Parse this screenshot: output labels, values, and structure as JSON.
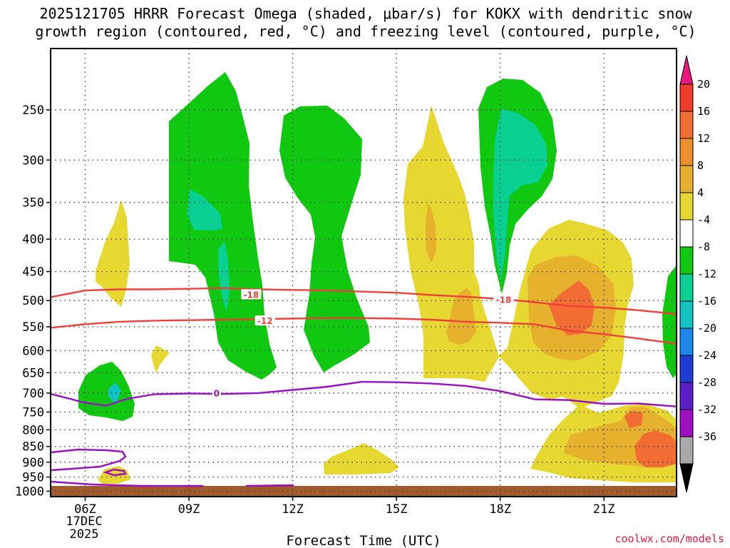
{
  "chart_data": {
    "type": "time-height cross section",
    "title_line1": "2025121705 HRRR Forecast Omega (shaded, μbar/s) for KOKX with dendritic snow",
    "title_line2": "growth region (contoured, red, °C) and freezing level (contoured, purple, °C)",
    "xlabel": "Forecast Time (UTC)",
    "x_ticks": [
      "06Z",
      "09Z",
      "12Z",
      "15Z",
      "18Z",
      "21Z"
    ],
    "x_tick_hours": [
      6,
      9,
      12,
      15,
      18,
      21
    ],
    "x_range_hours": [
      5,
      23.1
    ],
    "date_label_line1": "17DEC",
    "date_label_line2": "2025",
    "y_ticks": [
      250,
      300,
      350,
      400,
      450,
      500,
      550,
      600,
      650,
      700,
      750,
      800,
      850,
      900,
      950,
      1000
    ],
    "y_range_hpa": [
      200,
      1020
    ],
    "y_scale": "log",
    "ground_level_hpa": 1010,
    "colorbar": {
      "labels": [
        "20",
        "16",
        "12",
        "8",
        "4",
        "-4",
        "-8",
        "-12",
        "-16",
        "-20",
        "-24",
        "-28",
        "-32",
        "-36"
      ],
      "bins": [
        {
          "color": "#e8177f",
          "range": ">24"
        },
        {
          "color": "#f03c2a",
          "range": "20 to 24"
        },
        {
          "color": "#f26d34",
          "range": "16 to 20"
        },
        {
          "color": "#ee902a",
          "range": "12 to 16"
        },
        {
          "color": "#e6b22e",
          "range": "8 to 12"
        },
        {
          "color": "#e6d830",
          "range": "4 to 8"
        },
        {
          "color": "#ffffff",
          "range": "-4 to 4"
        },
        {
          "color": "#11c811",
          "range": "-8 to -4"
        },
        {
          "color": "#0acf92",
          "range": "-12 to -8"
        },
        {
          "color": "#11c3c3",
          "range": "-16 to -12"
        },
        {
          "color": "#1e87ee",
          "range": "-20 to -16"
        },
        {
          "color": "#1f3bd6",
          "range": "-24 to -20"
        },
        {
          "color": "#5b1fc9",
          "range": "-28 to -24"
        },
        {
          "color": "#9d0fc0",
          "range": "-32 to -28"
        },
        {
          "color": "#a9a9a9",
          "range": "-36 to -32"
        },
        {
          "color": "#000000",
          "range": "<-36"
        }
      ]
    },
    "contours": [
      {
        "name": "minus-18-isotherm",
        "label": "-18",
        "color": "#ef3f3b",
        "points": [
          [
            5,
            494
          ],
          [
            6,
            482
          ],
          [
            7,
            480
          ],
          [
            8,
            480
          ],
          [
            9,
            479
          ],
          [
            10,
            478
          ],
          [
            11,
            480
          ],
          [
            12,
            481
          ],
          [
            13,
            482
          ],
          [
            14,
            484
          ],
          [
            15,
            486
          ],
          [
            16,
            490
          ],
          [
            17,
            493
          ],
          [
            18,
            497
          ],
          [
            19,
            503
          ],
          [
            20,
            510
          ],
          [
            21,
            513
          ],
          [
            22,
            518
          ],
          [
            23.1,
            525
          ]
        ]
      },
      {
        "name": "minus-12-isotherm",
        "label": "-12",
        "color": "#ef3f3b",
        "points": [
          [
            5,
            552
          ],
          [
            6,
            545
          ],
          [
            7,
            540
          ],
          [
            8,
            538
          ],
          [
            9,
            537
          ],
          [
            10,
            536
          ],
          [
            11,
            535
          ],
          [
            12,
            534
          ],
          [
            13,
            533
          ],
          [
            14,
            533
          ],
          [
            15,
            534
          ],
          [
            16,
            536
          ],
          [
            17,
            540
          ],
          [
            18,
            542
          ],
          [
            19,
            545
          ],
          [
            20,
            558
          ],
          [
            21,
            565
          ],
          [
            22,
            574
          ],
          [
            23.1,
            585
          ]
        ]
      },
      {
        "name": "freezing-level",
        "label": "0",
        "color": "#9a0fc3",
        "points": [
          [
            5,
            702
          ],
          [
            6,
            725
          ],
          [
            6.6,
            733
          ],
          [
            7.2,
            715
          ],
          [
            8,
            703
          ],
          [
            9,
            701
          ],
          [
            10,
            702
          ],
          [
            11,
            700
          ],
          [
            12,
            692
          ],
          [
            13,
            684
          ],
          [
            14,
            672
          ],
          [
            15,
            673
          ],
          [
            16,
            676
          ],
          [
            17,
            682
          ],
          [
            18,
            695
          ],
          [
            19,
            716
          ],
          [
            20,
            718
          ],
          [
            21,
            728
          ],
          [
            22,
            727
          ],
          [
            23.1,
            735
          ]
        ]
      }
    ],
    "label_positions": [
      {
        "contour": "minus-18-isotherm",
        "hour": 10.8,
        "hpa": 490
      },
      {
        "contour": "minus-12-isotherm",
        "hour": 11.2,
        "hpa": 539
      },
      {
        "contour": "freezing-level",
        "hour": 9.8,
        "hpa": 701
      },
      {
        "contour": "minus-18-isotherm",
        "hour": 18.1,
        "hpa": 499
      }
    ]
  },
  "credit": "coolwx.com/models"
}
